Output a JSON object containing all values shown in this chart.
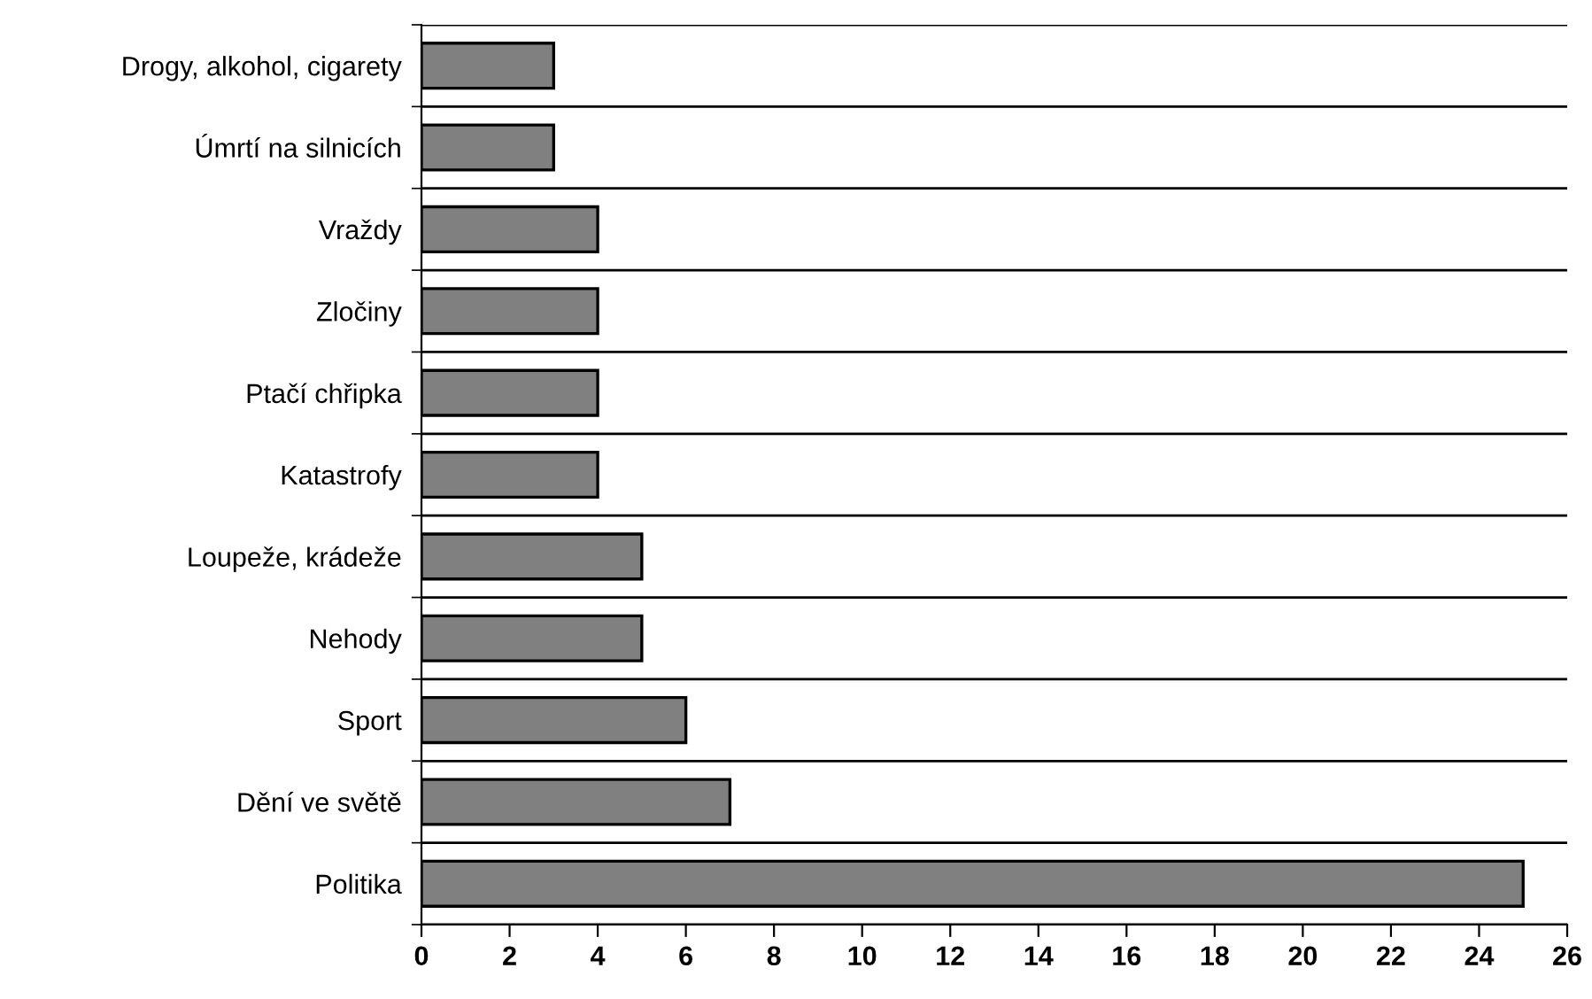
{
  "chart_data": {
    "type": "bar",
    "orientation": "horizontal",
    "categories": [
      "Drogy, alkohol, cigarety",
      "Úmrtí na silnicích",
      "Vraždy",
      "Zločiny",
      "Ptačí chřipka",
      "Katastrofy",
      "Loupeže, krádeže",
      "Nehody",
      "Sport",
      "Dění ve světě",
      "Politika"
    ],
    "values": [
      3,
      3,
      4,
      4,
      4,
      4,
      5,
      5,
      6,
      7,
      25
    ],
    "color": "#808080",
    "xlim": [
      0,
      26
    ],
    "xticks": [
      0,
      2,
      4,
      6,
      8,
      10,
      12,
      14,
      16,
      18,
      20,
      22,
      24,
      26
    ],
    "grid": "y"
  }
}
